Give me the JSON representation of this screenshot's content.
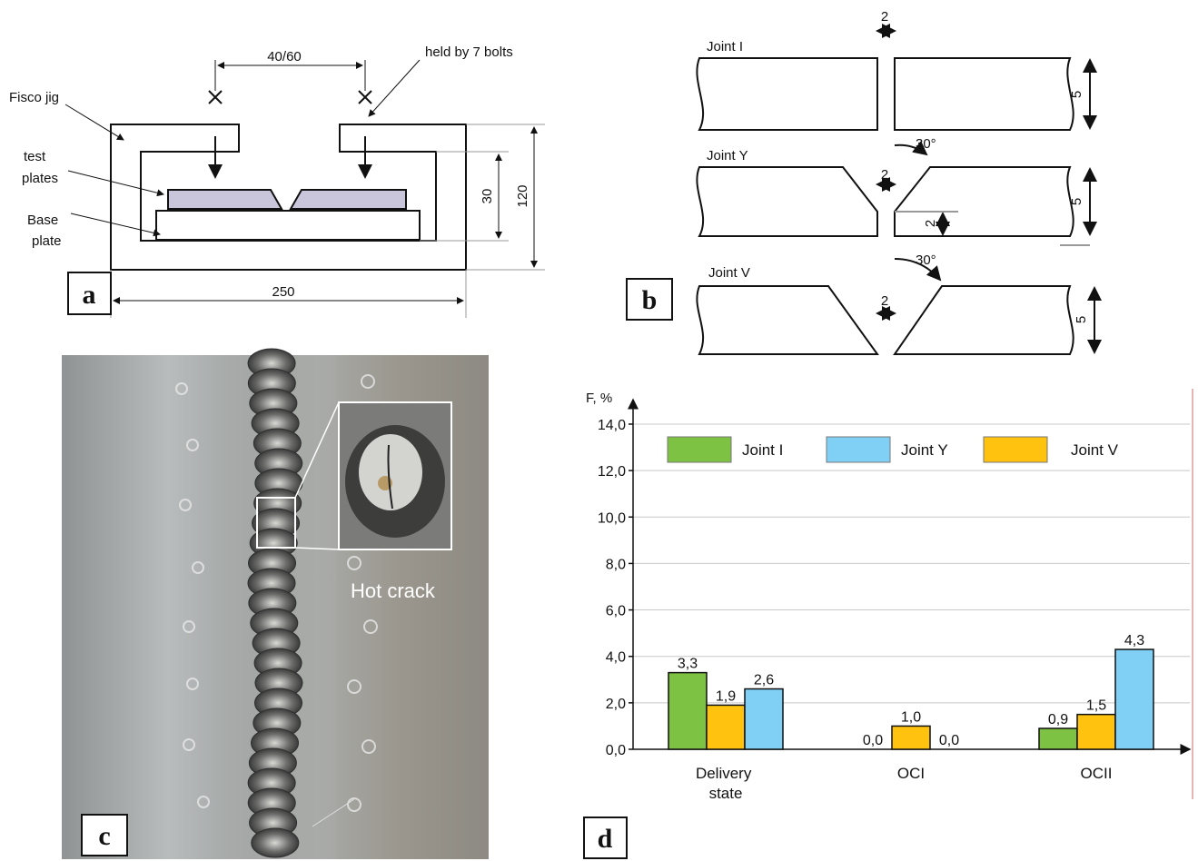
{
  "panel_a": {
    "letter": "a",
    "spacing": "40/60",
    "bolts": "held by 7 bolts",
    "jig": "Fisco jig",
    "test_plates": [
      "test",
      "plates"
    ],
    "base_plate": [
      "Base",
      "plate"
    ],
    "height_inner": "30",
    "height_outer": "120",
    "width": "250"
  },
  "panel_b": {
    "letter": "b",
    "joints": [
      {
        "name": "Joint I",
        "gap": "2",
        "thickness": "5"
      },
      {
        "name": "Joint Y",
        "angle": "30°",
        "gap": "2",
        "root": "2",
        "thickness": "5"
      },
      {
        "name": "Joint V",
        "angle": "30°",
        "gap": "2",
        "thickness": "5"
      }
    ]
  },
  "panel_c": {
    "letter": "c",
    "annotation": "Hot crack"
  },
  "chart_data": {
    "type": "bar",
    "panel_letter": "d",
    "y_label": "F, %",
    "categories": [
      "Delivery state",
      "OCI",
      "OCII"
    ],
    "series": [
      {
        "name": "Joint I",
        "color": "#7dc242",
        "values": [
          3.3,
          0.0,
          0.9
        ],
        "value_labels": [
          "3,3",
          "0,0",
          "0,9"
        ]
      },
      {
        "name": "Joint V",
        "color": "#ffc20e",
        "values": [
          1.9,
          1.0,
          1.5
        ],
        "value_labels": [
          "1,9",
          "1,0",
          "1,5"
        ]
      },
      {
        "name": "Joint Y",
        "color": "#80d0f5",
        "values": [
          2.6,
          0.0,
          4.3
        ],
        "value_labels": [
          "2,6",
          "0,0",
          "4,3"
        ]
      }
    ],
    "ylim": [
      0,
      15
    ],
    "yticks": [
      {
        "value": 0,
        "label": "0,0"
      },
      {
        "value": 2,
        "label": "2,0"
      },
      {
        "value": 4,
        "label": "4,0"
      },
      {
        "value": 6,
        "label": "6,0"
      },
      {
        "value": 8,
        "label": "8,0"
      },
      {
        "value": 10,
        "label": "10,0"
      },
      {
        "value": 12,
        "label": "12,0"
      },
      {
        "value": 14,
        "label": "14,0"
      }
    ],
    "grid": true
  }
}
